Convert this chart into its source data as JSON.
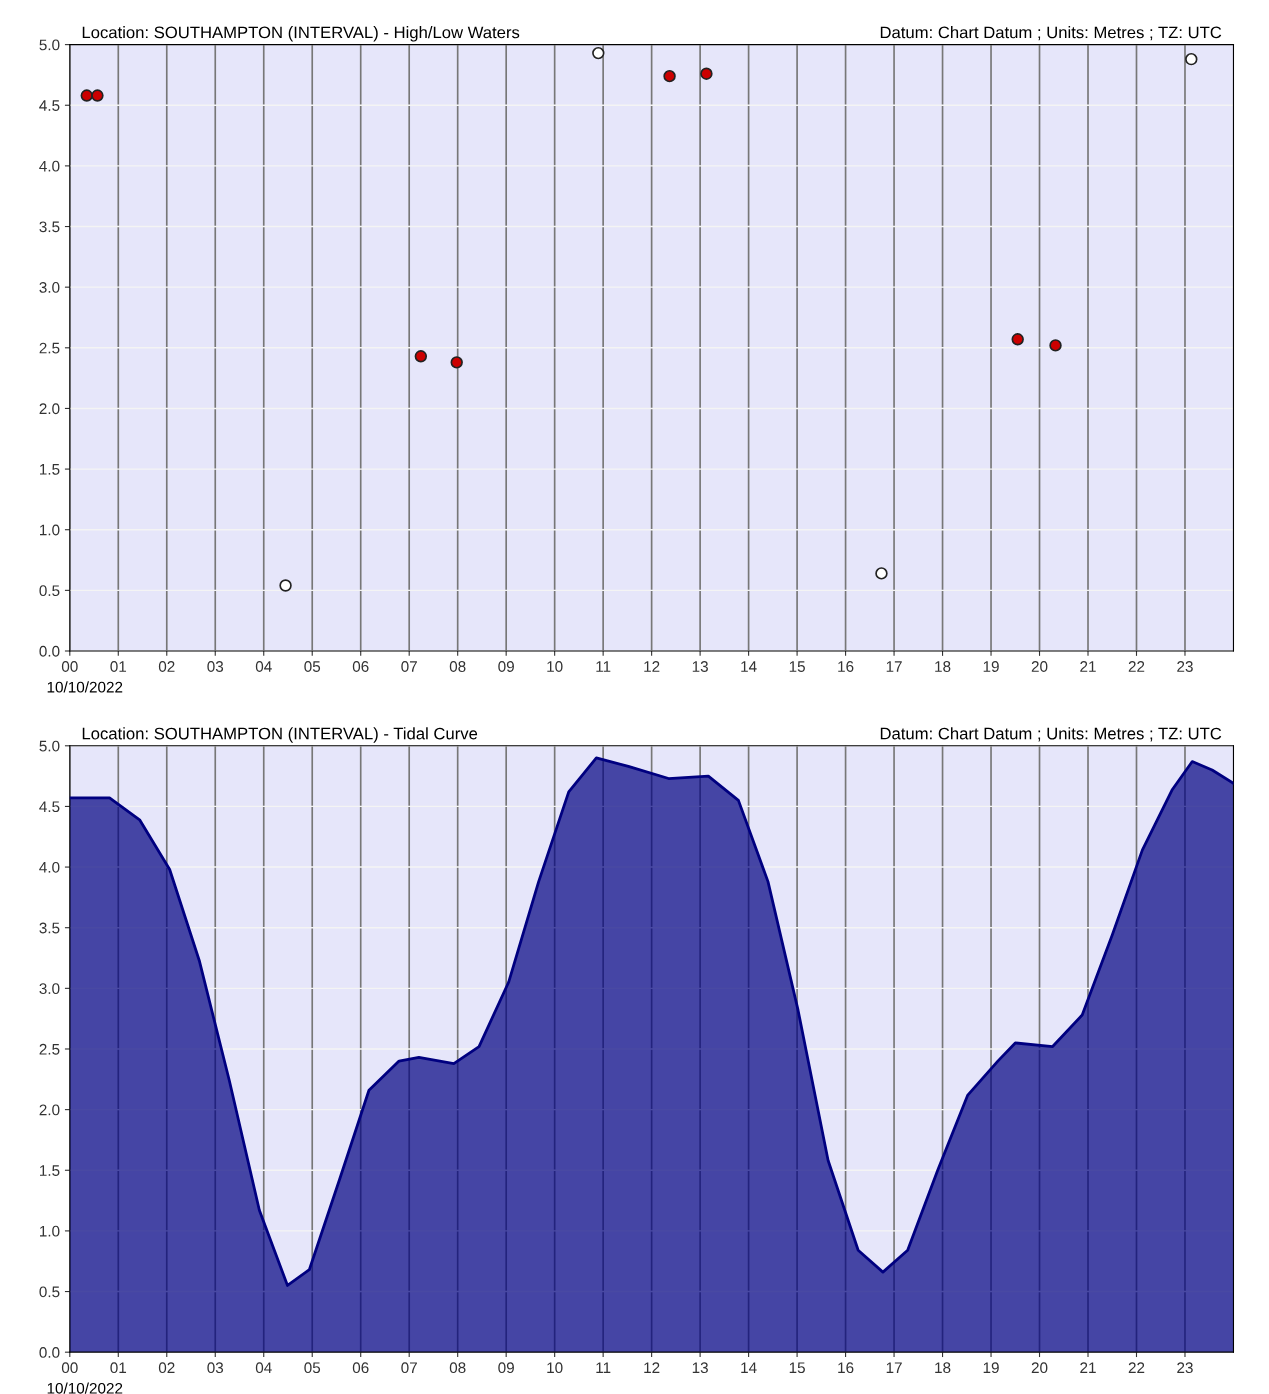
{
  "chart_data": [
    {
      "type": "scatter",
      "title": "Location: SOUTHAMPTON (INTERVAL) - High/Low Waters",
      "subtitle": "Datum: Chart Datum ; Units: Metres ; TZ: UTC",
      "annotations": [
        "10/10/2022"
      ],
      "xlim": [
        0,
        24
      ],
      "ylim": [
        0,
        5
      ],
      "xticks": [
        {
          "value": 0,
          "label": "00"
        },
        {
          "value": 1,
          "label": "01"
        },
        {
          "value": 2,
          "label": "02"
        },
        {
          "value": 3,
          "label": "03"
        },
        {
          "value": 4,
          "label": "04"
        },
        {
          "value": 5,
          "label": "05"
        },
        {
          "value": 6,
          "label": "06"
        },
        {
          "value": 7,
          "label": "07"
        },
        {
          "value": 8,
          "label": "08"
        },
        {
          "value": 9,
          "label": "09"
        },
        {
          "value": 10,
          "label": "10"
        },
        {
          "value": 11,
          "label": "11"
        },
        {
          "value": 12,
          "label": "12"
        },
        {
          "value": 13,
          "label": "13"
        },
        {
          "value": 14,
          "label": "14"
        },
        {
          "value": 15,
          "label": "15"
        },
        {
          "value": 16,
          "label": "16"
        },
        {
          "value": 17,
          "label": "17"
        },
        {
          "value": 18,
          "label": "18"
        },
        {
          "value": 19,
          "label": "19"
        },
        {
          "value": 20,
          "label": "20"
        },
        {
          "value": 21,
          "label": "21"
        },
        {
          "value": 22,
          "label": "22"
        },
        {
          "value": 23,
          "label": "23"
        }
      ],
      "yticks": [
        {
          "value": 0,
          "label": "0.0"
        },
        {
          "value": 0.5,
          "label": "0.5"
        },
        {
          "value": 1,
          "label": "1.0"
        },
        {
          "value": 1.5,
          "label": "1.5"
        },
        {
          "value": 2,
          "label": "2.0"
        },
        {
          "value": 2.5,
          "label": "2.5"
        },
        {
          "value": 3,
          "label": "3.0"
        },
        {
          "value": 3.5,
          "label": "3.5"
        },
        {
          "value": 4,
          "label": "4.0"
        },
        {
          "value": 4.5,
          "label": "4.5"
        },
        {
          "value": 5,
          "label": "5.0"
        }
      ],
      "grid": true,
      "marker": "circle",
      "series": [
        {
          "color": "#ffffff",
          "x": [
            4.45,
            10.9,
            16.74,
            23.13
          ],
          "values": [
            0.54,
            4.93,
            0.64,
            4.88
          ]
        },
        {
          "color": "#cc0000",
          "x": [
            0.35,
            0.57,
            7.24,
            7.98,
            12.37,
            13.13,
            19.55,
            20.33
          ],
          "values": [
            4.58,
            4.58,
            2.43,
            2.38,
            4.74,
            4.76,
            2.57,
            2.52
          ]
        }
      ]
    },
    {
      "type": "area",
      "title": "Location: SOUTHAMPTON (INTERVAL) - Tidal Curve",
      "subtitle": "Datum: Chart Datum ; Units: Metres ; TZ: UTC",
      "annotations": [
        "10/10/2022"
      ],
      "xlim": [
        0,
        24
      ],
      "ylim": [
        0,
        5
      ],
      "xticks": [
        {
          "value": 0,
          "label": "00"
        },
        {
          "value": 1,
          "label": "01"
        },
        {
          "value": 2,
          "label": "02"
        },
        {
          "value": 3,
          "label": "03"
        },
        {
          "value": 4,
          "label": "04"
        },
        {
          "value": 5,
          "label": "05"
        },
        {
          "value": 6,
          "label": "06"
        },
        {
          "value": 7,
          "label": "07"
        },
        {
          "value": 8,
          "label": "08"
        },
        {
          "value": 9,
          "label": "09"
        },
        {
          "value": 10,
          "label": "10"
        },
        {
          "value": 11,
          "label": "11"
        },
        {
          "value": 12,
          "label": "12"
        },
        {
          "value": 13,
          "label": "13"
        },
        {
          "value": 14,
          "label": "14"
        },
        {
          "value": 15,
          "label": "15"
        },
        {
          "value": 16,
          "label": "16"
        },
        {
          "value": 17,
          "label": "17"
        },
        {
          "value": 18,
          "label": "18"
        },
        {
          "value": 19,
          "label": "19"
        },
        {
          "value": 20,
          "label": "20"
        },
        {
          "value": 21,
          "label": "21"
        },
        {
          "value": 22,
          "label": "22"
        },
        {
          "value": 23,
          "label": "23"
        }
      ],
      "yticks": [
        {
          "value": 0,
          "label": "0.0"
        },
        {
          "value": 0.5,
          "label": "0.5"
        },
        {
          "value": 1,
          "label": "1.0"
        },
        {
          "value": 1.5,
          "label": "1.5"
        },
        {
          "value": 2,
          "label": "2.0"
        },
        {
          "value": 2.5,
          "label": "2.5"
        },
        {
          "value": 3,
          "label": "3.0"
        },
        {
          "value": 3.5,
          "label": "3.5"
        },
        {
          "value": 4,
          "label": "4.0"
        },
        {
          "value": 4.5,
          "label": "4.5"
        },
        {
          "value": 5,
          "label": "5.0"
        }
      ],
      "grid": true,
      "series": [
        {
          "color": "#000080",
          "x": [
            0,
            0.82,
            1.44,
            2.06,
            2.67,
            3.29,
            3.91,
            4.49,
            4.94,
            5.56,
            6.17,
            6.79,
            7.2,
            7.92,
            8.44,
            9.05,
            9.67,
            10.29,
            10.86,
            11.52,
            12.35,
            13.17,
            13.79,
            14.4,
            15.02,
            15.64,
            16.26,
            16.77,
            17.28,
            17.9,
            18.52,
            19.14,
            19.5,
            20.27,
            20.88,
            21.5,
            22.12,
            22.74,
            23.15,
            23.56,
            24
          ],
          "values": [
            4.57,
            4.57,
            4.39,
            3.98,
            3.23,
            2.24,
            1.17,
            0.55,
            0.68,
            1.42,
            2.16,
            2.4,
            2.43,
            2.38,
            2.52,
            3.05,
            3.88,
            4.62,
            4.9,
            4.83,
            4.73,
            4.75,
            4.55,
            3.88,
            2.82,
            1.58,
            0.84,
            0.66,
            0.84,
            1.5,
            2.12,
            2.4,
            2.55,
            2.52,
            2.78,
            3.44,
            4.14,
            4.64,
            4.87,
            4.8,
            4.69
          ]
        }
      ]
    }
  ]
}
